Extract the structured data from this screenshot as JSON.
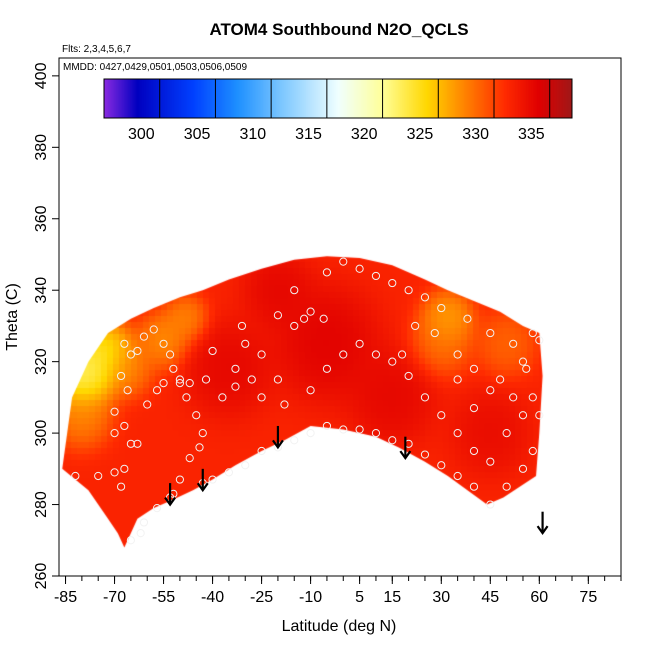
{
  "chart_data": {
    "type": "heatmap",
    "title": "ATOM4 Southbound N2O_QCLS",
    "annotations": [
      "Flts: 2,3,4,5,6,7",
      "MMDD: 0427,0429,0501,0503,0506,0509"
    ],
    "xlabel": "Latitude (deg N)",
    "ylabel": "Theta (C)",
    "xlim": [
      -87,
      85
    ],
    "ylim": [
      260,
      405
    ],
    "x_ticks": [
      -85,
      -70,
      -55,
      -40,
      -25,
      -10,
      5,
      15,
      30,
      45,
      60,
      75
    ],
    "x_tick_labels": [
      "-85",
      "-70",
      "-55",
      "-40",
      "-25",
      "-10",
      "5",
      "15",
      "30",
      "45",
      "60",
      "75"
    ],
    "x_minor_step": 5,
    "y_ticks": [
      260,
      280,
      300,
      320,
      340,
      360,
      380,
      400
    ],
    "y_tick_labels": [
      "260",
      "280",
      "300",
      "320",
      "340",
      "360",
      "380",
      "400"
    ],
    "colorbar": {
      "range": [
        295,
        337
      ],
      "ticks": [
        300,
        305,
        310,
        315,
        320,
        325,
        330,
        335
      ],
      "tick_labels": [
        "300",
        "305",
        "310",
        "315",
        "320",
        "325",
        "330",
        "335"
      ],
      "stops": [
        {
          "v": 295,
          "c": "#8a2be2"
        },
        {
          "v": 298,
          "c": "#0000c0"
        },
        {
          "v": 303,
          "c": "#0040ff"
        },
        {
          "v": 307,
          "c": "#1e90ff"
        },
        {
          "v": 311,
          "c": "#7ec8ff"
        },
        {
          "v": 316,
          "c": "#f0ffff"
        },
        {
          "v": 320,
          "c": "#ffff99"
        },
        {
          "v": 324,
          "c": "#ffd700"
        },
        {
          "v": 327,
          "c": "#ff8c00"
        },
        {
          "v": 331,
          "c": "#ff2a00"
        },
        {
          "v": 334,
          "c": "#e00000"
        },
        {
          "v": 337,
          "c": "#a01818"
        }
      ]
    },
    "field": {
      "background_value": 331.5,
      "domain_upper": [
        [
          -86,
          290
        ],
        [
          -83,
          310
        ],
        [
          -78,
          320
        ],
        [
          -72,
          328
        ],
        [
          -65,
          332
        ],
        [
          -58,
          335
        ],
        [
          -50,
          338
        ],
        [
          -43,
          340
        ],
        [
          -35,
          343
        ],
        [
          -25,
          346
        ],
        [
          -15,
          348.5
        ],
        [
          -5,
          349.5
        ],
        [
          5,
          349
        ],
        [
          15,
          347
        ],
        [
          25,
          343
        ],
        [
          32,
          340
        ],
        [
          40,
          337
        ],
        [
          48,
          334
        ],
        [
          55,
          330
        ],
        [
          60,
          328
        ],
        [
          61,
          316
        ],
        [
          60,
          300
        ],
        [
          59,
          288
        ]
      ],
      "domain_lower": [
        [
          -86,
          290
        ],
        [
          -82,
          287
        ],
        [
          -78,
          284
        ],
        [
          -75,
          280
        ],
        [
          -72,
          276
        ],
        [
          -69,
          272
        ],
        [
          -67,
          268
        ],
        [
          -63,
          276
        ],
        [
          -58,
          279
        ],
        [
          -53,
          281
        ],
        [
          -46,
          284
        ],
        [
          -40,
          287
        ],
        [
          -33,
          291
        ],
        [
          -25,
          295
        ],
        [
          -18,
          298
        ],
        [
          -10,
          302
        ],
        [
          0,
          301
        ],
        [
          10,
          299
        ],
        [
          17,
          296
        ],
        [
          25,
          292
        ],
        [
          32,
          288
        ],
        [
          38,
          284
        ],
        [
          44,
          280
        ],
        [
          49,
          282
        ],
        [
          54,
          285
        ],
        [
          59,
          288
        ]
      ],
      "features": [
        {
          "lat": -80,
          "theta": 316,
          "value": 319,
          "radius": 7
        },
        {
          "lat": -73,
          "theta": 322,
          "value": 321,
          "radius": 7
        },
        {
          "lat": -80,
          "theta": 305,
          "value": 326.5,
          "radius": 7
        },
        {
          "lat": -66,
          "theta": 318,
          "value": 327,
          "radius": 6
        },
        {
          "lat": -55,
          "theta": 326,
          "value": 326,
          "radius": 6
        },
        {
          "lat": -48,
          "theta": 332,
          "value": 326.5,
          "radius": 5
        },
        {
          "lat": 32,
          "theta": 332,
          "value": 325,
          "radius": 6
        },
        {
          "lat": 30,
          "theta": 325,
          "value": 327.5,
          "radius": 7
        },
        {
          "lat": 50,
          "theta": 325,
          "value": 328,
          "radius": 7
        },
        {
          "lat": -35,
          "theta": 318,
          "value": 334,
          "radius": 10
        },
        {
          "lat": -5,
          "theta": 325,
          "value": 334.5,
          "radius": 12
        },
        {
          "lat": 15,
          "theta": 310,
          "value": 334,
          "radius": 10
        },
        {
          "lat": -20,
          "theta": 340,
          "value": 334,
          "radius": 8
        },
        {
          "lat": 45,
          "theta": 300,
          "value": 333.5,
          "radius": 9
        }
      ]
    },
    "sample_points": [
      [
        -82,
        288
      ],
      [
        -75,
        288
      ],
      [
        -70,
        289
      ],
      [
        -68,
        285
      ],
      [
        -67,
        290
      ],
      [
        -70,
        300
      ],
      [
        -70,
        306
      ],
      [
        -67,
        302
      ],
      [
        -65,
        297
      ],
      [
        -63,
        297
      ],
      [
        -66,
        312
      ],
      [
        -68,
        316
      ],
      [
        -67,
        325
      ],
      [
        -65,
        322
      ],
      [
        -63,
        323
      ],
      [
        -61,
        327
      ],
      [
        -58,
        329
      ],
      [
        -55,
        325
      ],
      [
        -53,
        322
      ],
      [
        -52,
        318
      ],
      [
        -50,
        315
      ],
      [
        -48,
        310
      ],
      [
        -45,
        305
      ],
      [
        -43,
        300
      ],
      [
        -44,
        296
      ],
      [
        -47,
        293
      ],
      [
        -50,
        287
      ],
      [
        -52,
        283
      ],
      [
        -53,
        282
      ],
      [
        -57,
        279
      ],
      [
        -61,
        275
      ],
      [
        -62,
        272
      ],
      [
        -65,
        270
      ],
      [
        -60,
        308
      ],
      [
        -57,
        312
      ],
      [
        -55,
        314
      ],
      [
        -50,
        314
      ],
      [
        -47,
        314
      ],
      [
        -42,
        315
      ],
      [
        -40,
        323
      ],
      [
        -33,
        318
      ],
      [
        -30,
        325
      ],
      [
        -25,
        322
      ],
      [
        -20,
        315
      ],
      [
        -28,
        315
      ],
      [
        -31,
        330
      ],
      [
        -20,
        333
      ],
      [
        -15,
        330
      ],
      [
        -10,
        334
      ],
      [
        -6,
        332
      ],
      [
        -12,
        332
      ],
      [
        -15,
        340
      ],
      [
        -5,
        345
      ],
      [
        0,
        348
      ],
      [
        5,
        346
      ],
      [
        10,
        344
      ],
      [
        15,
        342
      ],
      [
        20,
        340
      ],
      [
        25,
        338
      ],
      [
        30,
        335
      ],
      [
        38,
        332
      ],
      [
        45,
        328
      ],
      [
        52,
        325
      ],
      [
        56,
        318
      ],
      [
        58,
        310
      ],
      [
        60,
        305
      ],
      [
        58,
        295
      ],
      [
        55,
        290
      ],
      [
        50,
        285
      ],
      [
        45,
        280
      ],
      [
        40,
        285
      ],
      [
        35,
        288
      ],
      [
        30,
        291
      ],
      [
        25,
        294
      ],
      [
        20,
        297
      ],
      [
        15,
        298
      ],
      [
        10,
        300
      ],
      [
        5,
        301
      ],
      [
        0,
        301
      ],
      [
        -5,
        302
      ],
      [
        -10,
        300
      ],
      [
        -15,
        298
      ],
      [
        -20,
        296
      ],
      [
        -25,
        295
      ],
      [
        -30,
        291
      ],
      [
        -35,
        289
      ],
      [
        -40,
        287
      ],
      [
        -43,
        286
      ],
      [
        -37,
        310
      ],
      [
        -33,
        313
      ],
      [
        -25,
        310
      ],
      [
        -18,
        308
      ],
      [
        -10,
        312
      ],
      [
        -5,
        318
      ],
      [
        0,
        322
      ],
      [
        5,
        325
      ],
      [
        10,
        322
      ],
      [
        15,
        320
      ],
      [
        18,
        322
      ],
      [
        20,
        316
      ],
      [
        25,
        310
      ],
      [
        30,
        305
      ],
      [
        35,
        300
      ],
      [
        40,
        295
      ],
      [
        45,
        292
      ],
      [
        50,
        300
      ],
      [
        55,
        305
      ],
      [
        45,
        312
      ],
      [
        40,
        318
      ],
      [
        35,
        322
      ],
      [
        28,
        328
      ],
      [
        22,
        330
      ],
      [
        35,
        315
      ],
      [
        40,
        307
      ],
      [
        48,
        315
      ],
      [
        52,
        310
      ],
      [
        55,
        320
      ],
      [
        58,
        328
      ],
      [
        60,
        326
      ]
    ],
    "arrows": [
      {
        "lat": -53,
        "theta_top": 286,
        "theta_tip": 280
      },
      {
        "lat": -43,
        "theta_top": 290,
        "theta_tip": 284
      },
      {
        "lat": -20,
        "theta_top": 302,
        "theta_tip": 296
      },
      {
        "lat": 19,
        "theta_top": 299,
        "theta_tip": 293
      },
      {
        "lat": 61,
        "theta_top": 278,
        "theta_tip": 272
      }
    ]
  }
}
